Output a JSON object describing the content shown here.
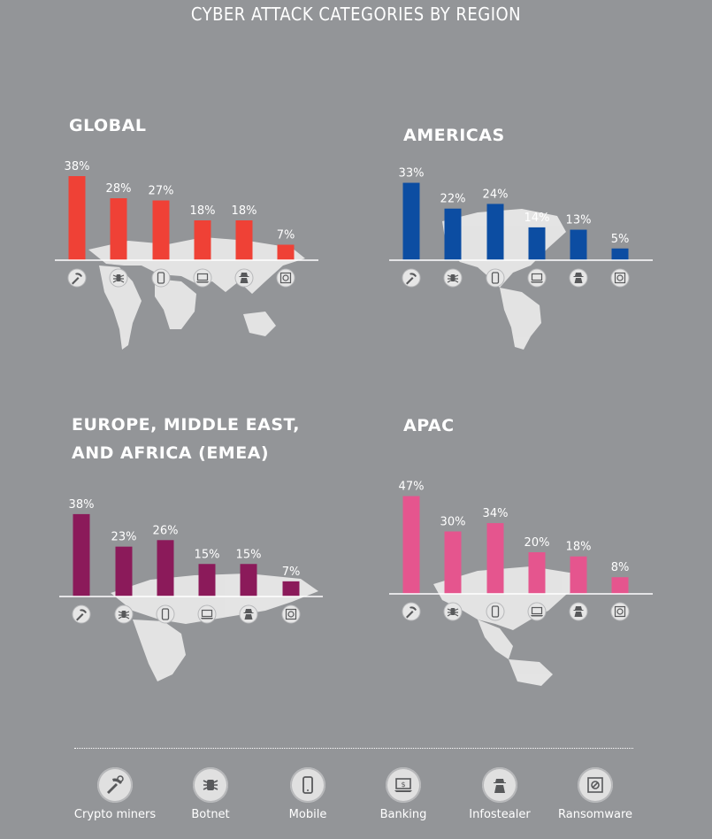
{
  "page_title": "CYBER ATTACK CATEGORIES BY REGION",
  "categories": [
    "Crypto miners",
    "Botnet",
    "Mobile",
    "Banking",
    "Infostealer",
    "Ransomware"
  ],
  "category_icons": [
    "crypto-miner-icon",
    "botnet-icon",
    "mobile-icon",
    "banking-icon",
    "infostealer-icon",
    "ransomware-icon"
  ],
  "chart_data": [
    {
      "type": "bar",
      "title": "GLOBAL",
      "color": "#ef4136",
      "categories": [
        "Crypto miners",
        "Botnet",
        "Mobile",
        "Banking",
        "Infostealer",
        "Ransomware"
      ],
      "values": [
        38,
        28,
        27,
        18,
        18,
        7
      ],
      "labels": [
        "38%",
        "28%",
        "27%",
        "18%",
        "18%",
        "7%"
      ]
    },
    {
      "type": "bar",
      "title": "AMERICAS",
      "color": "#0c4da2",
      "categories": [
        "Crypto miners",
        "Botnet",
        "Mobile",
        "Banking",
        "Infostealer",
        "Ransomware"
      ],
      "values": [
        33,
        22,
        24,
        14,
        13,
        5
      ],
      "labels": [
        "33%",
        "22%",
        "24%",
        "14%",
        "13%",
        "5%"
      ]
    },
    {
      "type": "bar",
      "title": "EUROPE, MIDDLE EAST,\nAND AFRICA (EMEA)",
      "title_line1": "EUROPE, MIDDLE EAST,",
      "title_line2": "AND AFRICA (EMEA)",
      "color": "#8b1a5a",
      "categories": [
        "Crypto miners",
        "Botnet",
        "Mobile",
        "Banking",
        "Infostealer",
        "Ransomware"
      ],
      "values": [
        38,
        23,
        26,
        15,
        15,
        7
      ],
      "labels": [
        "38%",
        "23%",
        "26%",
        "15%",
        "15%",
        "7%"
      ]
    },
    {
      "type": "bar",
      "title": "APAC",
      "color": "#e5558e",
      "categories": [
        "Crypto miners",
        "Botnet",
        "Mobile",
        "Banking",
        "Infostealer",
        "Ransomware"
      ],
      "values": [
        47,
        30,
        34,
        20,
        18,
        8
      ],
      "labels": [
        "47%",
        "30%",
        "34%",
        "20%",
        "18%",
        "8%"
      ]
    }
  ]
}
